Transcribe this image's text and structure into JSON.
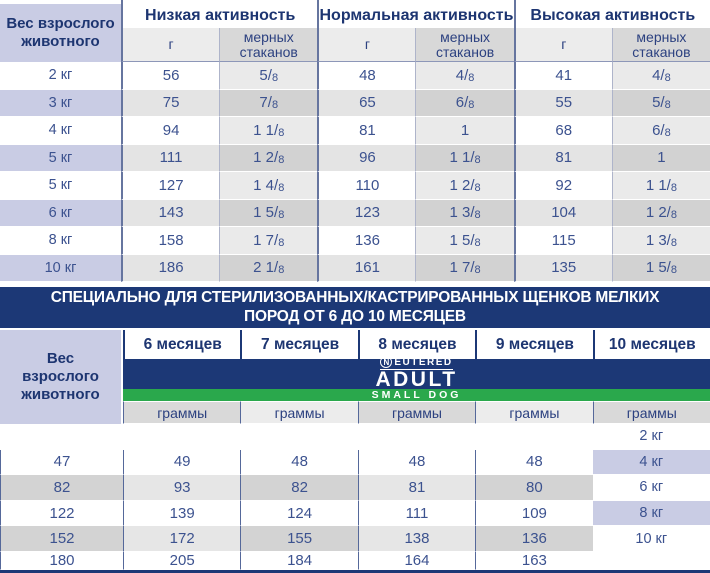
{
  "colors": {
    "navy": "#1c3876",
    "lavender": "#c9cce4",
    "green": "#2aa84c",
    "header_text": "#1d3571",
    "value_text": "#3c528f"
  },
  "top_table": {
    "weight_header": "Вес взрослого животного",
    "groups": [
      {
        "label": "Низкая активность"
      },
      {
        "label": "Нормальная активность"
      },
      {
        "label": "Высокая активность"
      }
    ],
    "sub_headers": {
      "grams": "г",
      "cups": "мерных стаканов"
    },
    "rows": [
      {
        "weight": "2 кг",
        "values": [
          "56",
          "5/8",
          "48",
          "4/8",
          "41",
          "4/8"
        ]
      },
      {
        "weight": "3 кг",
        "values": [
          "75",
          "7/8",
          "65",
          "6/8",
          "55",
          "5/8"
        ]
      },
      {
        "weight": "4 кг",
        "values": [
          "94",
          "1 1/8",
          "81",
          "1",
          "68",
          "6/8"
        ]
      },
      {
        "weight": "5 кг",
        "values": [
          "111",
          "1 2/8",
          "96",
          "1 1/8",
          "81",
          "1"
        ]
      },
      {
        "weight": "5 кг",
        "values": [
          "127",
          "1 4/8",
          "110",
          "1 2/8",
          "92",
          "1 1/8"
        ]
      },
      {
        "weight": "6 кг",
        "values": [
          "143",
          "1 5/8",
          "123",
          "1 3/8",
          "104",
          "1 2/8"
        ]
      },
      {
        "weight": "8 кг",
        "values": [
          "158",
          "1 7/8",
          "136",
          "1 5/8",
          "115",
          "1 3/8"
        ]
      },
      {
        "weight": "10 кг",
        "values": [
          "186",
          "2 1/8",
          "161",
          "1 7/8",
          "135",
          "1 5/8"
        ]
      }
    ]
  },
  "banner": {
    "line1": "СПЕЦИАЛЬНО ДЛЯ СТЕРИЛИЗОВАННЫХ/КАСТРИРОВАННЫХ ЩЕНКОВ МЕЛКИХ",
    "line2": "ПОРОД ОТ 6 ДО 10 МЕСЯЦЕВ"
  },
  "bottom_table": {
    "weight_header": "Вес взрослого животного",
    "months": [
      "6 месяцев",
      "7 месяцев",
      "8 месяцев",
      "9 месяцев",
      "10 месяцев"
    ],
    "brand": {
      "neutered_n": "N",
      "neutered_rest": "EUTERED",
      "adult": "ADULT",
      "small_dog": "SMALL DOG"
    },
    "unit_label": "граммы",
    "rows": [
      {
        "weight": "2 кг",
        "values": [
          "47",
          "49",
          "48",
          "48",
          "48"
        ]
      },
      {
        "weight": "4 кг",
        "values": [
          "82",
          "93",
          "82",
          "81",
          "80"
        ]
      },
      {
        "weight": "6 кг",
        "values": [
          "122",
          "139",
          "124",
          "111",
          "109"
        ]
      },
      {
        "weight": "8 кг",
        "values": [
          "152",
          "172",
          "155",
          "138",
          "136"
        ]
      },
      {
        "weight": "10 кг",
        "values": [
          "180",
          "205",
          "184",
          "164",
          "163"
        ]
      }
    ]
  }
}
